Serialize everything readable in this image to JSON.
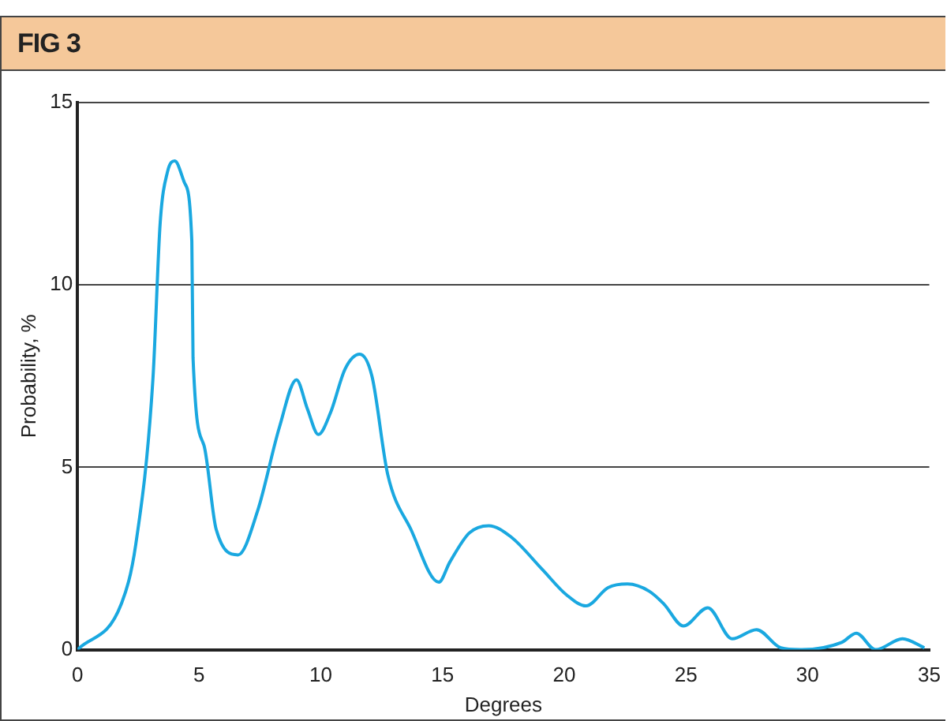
{
  "chart_data": {
    "type": "line",
    "title": "FIG 3",
    "xlabel": "Degrees",
    "ylabel": "Probability, %",
    "grid": "y",
    "legend": false,
    "marker": "none",
    "line_style": "solid",
    "xlim": [
      0,
      35
    ],
    "xticks": [
      0,
      5,
      10,
      15,
      20,
      25,
      30,
      35
    ],
    "ylim": [
      0,
      15
    ],
    "yticks": [
      0,
      5,
      10,
      15
    ],
    "series": [
      {
        "color": "#1aa8e0",
        "x": [
          0,
          1.8,
          2.4,
          3.1,
          3.4,
          3.7,
          4.0,
          4.4,
          4.7,
          4.75,
          5.2,
          5.7,
          6.6,
          7.4,
          8.3,
          9.0,
          9.45,
          9.9,
          10.4,
          11.0,
          11.6,
          12.1,
          12.75,
          13.7,
          14.85,
          15.3,
          16.1,
          16.9,
          17.8,
          19.1,
          20.1,
          20.9,
          21.8,
          22.6,
          23.5,
          24.1,
          24.9,
          25.9,
          26.9,
          27.9,
          28.9,
          29.7,
          31.4,
          32.0,
          32.8,
          33.9,
          34.8
        ],
        "values": [
          0,
          1.25,
          2.9,
          7.4,
          11.7,
          13.1,
          13.4,
          12.8,
          11.2,
          8,
          5.6,
          3.3,
          2.6,
          3.8,
          6.1,
          7.4,
          6.6,
          5.9,
          6.5,
          7.7,
          8.1,
          7.5,
          4.8,
          3.3,
          1.85,
          2.4,
          3.2,
          3.4,
          3.1,
          2.2,
          1.5,
          1.2,
          1.7,
          1.8,
          1.6,
          1.25,
          0.65,
          1.15,
          0.3,
          0.55,
          0.05,
          0,
          0.2,
          0.45,
          0,
          0.3,
          0.05
        ]
      }
    ]
  }
}
